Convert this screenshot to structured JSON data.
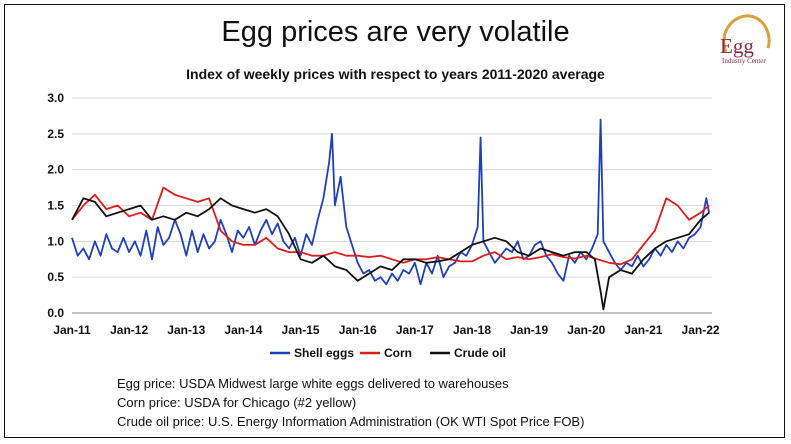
{
  "chart_data": {
    "type": "line",
    "title": "Egg prices are very volatile",
    "subtitle": "Index of weekly prices with respect to years 2011-2020 average",
    "ylim": [
      0,
      3.0
    ],
    "y_ticks": [
      "0.0",
      "0.5",
      "1.0",
      "1.5",
      "2.0",
      "2.5",
      "3.0"
    ],
    "xlim": [
      2011.0,
      2022.2
    ],
    "x_ticks": [
      {
        "value": 2011,
        "label": "Jan-11"
      },
      {
        "value": 2012,
        "label": "Jan-12"
      },
      {
        "value": 2013,
        "label": "Jan-13"
      },
      {
        "value": 2014,
        "label": "Jan-14"
      },
      {
        "value": 2015,
        "label": "Jan-15"
      },
      {
        "value": 2016,
        "label": "Jan-16"
      },
      {
        "value": 2017,
        "label": "Jan-17"
      },
      {
        "value": 2018,
        "label": "Jan-18"
      },
      {
        "value": 2019,
        "label": "Jan-19"
      },
      {
        "value": 2020,
        "label": "Jan-20"
      },
      {
        "value": 2021,
        "label": "Jan-21"
      },
      {
        "value": 2022,
        "label": "Jan-22"
      }
    ],
    "grid": "horizontal",
    "legend": "bottom",
    "series": [
      {
        "name": "Shell eggs",
        "color": "#1f3fbf",
        "x": [
          2011.0,
          2011.1,
          2011.2,
          2011.3,
          2011.4,
          2011.5,
          2011.6,
          2011.7,
          2011.8,
          2011.9,
          2012.0,
          2012.1,
          2012.2,
          2012.3,
          2012.4,
          2012.5,
          2012.6,
          2012.7,
          2012.8,
          2012.9,
          2013.0,
          2013.1,
          2013.2,
          2013.3,
          2013.4,
          2013.5,
          2013.6,
          2013.7,
          2013.8,
          2013.9,
          2014.0,
          2014.1,
          2014.2,
          2014.3,
          2014.4,
          2014.5,
          2014.6,
          2014.7,
          2014.8,
          2014.9,
          2015.0,
          2015.1,
          2015.2,
          2015.3,
          2015.4,
          2015.5,
          2015.55,
          2015.6,
          2015.7,
          2015.8,
          2015.9,
          2016.0,
          2016.1,
          2016.2,
          2016.3,
          2016.4,
          2016.5,
          2016.6,
          2016.7,
          2016.8,
          2016.9,
          2017.0,
          2017.1,
          2017.2,
          2017.3,
          2017.4,
          2017.5,
          2017.6,
          2017.7,
          2017.8,
          2017.9,
          2018.0,
          2018.1,
          2018.15,
          2018.2,
          2018.3,
          2018.4,
          2018.5,
          2018.6,
          2018.7,
          2018.8,
          2018.9,
          2019.0,
          2019.1,
          2019.2,
          2019.3,
          2019.4,
          2019.5,
          2019.6,
          2019.7,
          2019.8,
          2019.9,
          2020.0,
          2020.1,
          2020.2,
          2020.25,
          2020.3,
          2020.4,
          2020.5,
          2020.6,
          2020.7,
          2020.8,
          2020.9,
          2021.0,
          2021.1,
          2021.2,
          2021.3,
          2021.4,
          2021.5,
          2021.6,
          2021.7,
          2021.8,
          2021.9,
          2022.0,
          2022.1,
          2022.15
        ],
        "y": [
          1.05,
          0.8,
          0.9,
          0.75,
          1.0,
          0.8,
          1.1,
          0.9,
          0.85,
          1.05,
          0.85,
          1.0,
          0.8,
          1.15,
          0.75,
          1.2,
          0.95,
          1.05,
          1.3,
          1.1,
          0.8,
          1.15,
          0.85,
          1.1,
          0.9,
          1.0,
          1.3,
          1.1,
          0.85,
          1.15,
          1.05,
          1.2,
          0.95,
          1.15,
          1.3,
          1.1,
          1.25,
          1.0,
          0.9,
          1.05,
          0.8,
          1.1,
          0.95,
          1.3,
          1.6,
          2.1,
          2.5,
          1.5,
          1.9,
          1.2,
          0.95,
          0.7,
          0.55,
          0.6,
          0.45,
          0.5,
          0.4,
          0.55,
          0.45,
          0.6,
          0.55,
          0.7,
          0.4,
          0.7,
          0.55,
          0.8,
          0.5,
          0.65,
          0.7,
          0.85,
          0.8,
          0.95,
          1.2,
          2.45,
          1.0,
          0.85,
          0.7,
          0.8,
          0.9,
          0.85,
          1.0,
          0.75,
          0.8,
          0.95,
          1.0,
          0.8,
          0.7,
          0.55,
          0.45,
          0.8,
          0.7,
          0.85,
          0.75,
          0.9,
          1.1,
          2.7,
          1.0,
          0.85,
          0.7,
          0.6,
          0.7,
          0.65,
          0.8,
          0.65,
          0.75,
          0.9,
          0.8,
          0.95,
          0.85,
          1.0,
          0.9,
          1.05,
          1.1,
          1.2,
          1.6,
          1.4
        ]
      },
      {
        "name": "Corn",
        "color": "#e01b1b",
        "x": [
          2011.0,
          2011.2,
          2011.4,
          2011.6,
          2011.8,
          2012.0,
          2012.2,
          2012.4,
          2012.6,
          2012.8,
          2013.0,
          2013.2,
          2013.4,
          2013.6,
          2013.8,
          2014.0,
          2014.2,
          2014.4,
          2014.6,
          2014.8,
          2015.0,
          2015.2,
          2015.4,
          2015.6,
          2015.8,
          2016.0,
          2016.2,
          2016.4,
          2016.6,
          2016.8,
          2017.0,
          2017.2,
          2017.4,
          2017.6,
          2017.8,
          2018.0,
          2018.2,
          2018.4,
          2018.6,
          2018.8,
          2019.0,
          2019.2,
          2019.4,
          2019.6,
          2019.8,
          2020.0,
          2020.2,
          2020.4,
          2020.6,
          2020.8,
          2021.0,
          2021.2,
          2021.4,
          2021.6,
          2021.8,
          2022.0,
          2022.15
        ],
        "y": [
          1.3,
          1.5,
          1.65,
          1.45,
          1.5,
          1.35,
          1.4,
          1.3,
          1.75,
          1.65,
          1.6,
          1.55,
          1.6,
          1.15,
          1.0,
          0.95,
          0.95,
          1.05,
          0.9,
          0.85,
          0.85,
          0.8,
          0.8,
          0.85,
          0.8,
          0.8,
          0.78,
          0.8,
          0.75,
          0.7,
          0.75,
          0.75,
          0.78,
          0.75,
          0.72,
          0.72,
          0.8,
          0.85,
          0.75,
          0.78,
          0.75,
          0.78,
          0.82,
          0.78,
          0.76,
          0.8,
          0.75,
          0.7,
          0.68,
          0.75,
          0.95,
          1.15,
          1.6,
          1.5,
          1.3,
          1.4,
          1.5
        ]
      },
      {
        "name": "Crude oil",
        "color": "#111111",
        "x": [
          2011.0,
          2011.2,
          2011.4,
          2011.6,
          2011.8,
          2012.0,
          2012.2,
          2012.4,
          2012.6,
          2012.8,
          2013.0,
          2013.2,
          2013.4,
          2013.6,
          2013.8,
          2014.0,
          2014.2,
          2014.4,
          2014.6,
          2014.8,
          2015.0,
          2015.2,
          2015.4,
          2015.6,
          2015.8,
          2016.0,
          2016.2,
          2016.4,
          2016.6,
          2016.8,
          2017.0,
          2017.2,
          2017.4,
          2017.6,
          2017.8,
          2018.0,
          2018.2,
          2018.4,
          2018.6,
          2018.8,
          2019.0,
          2019.2,
          2019.4,
          2019.6,
          2019.8,
          2020.0,
          2020.15,
          2020.25,
          2020.3,
          2020.4,
          2020.6,
          2020.8,
          2021.0,
          2021.2,
          2021.4,
          2021.6,
          2021.8,
          2022.0,
          2022.15
        ],
        "y": [
          1.3,
          1.6,
          1.55,
          1.35,
          1.4,
          1.45,
          1.5,
          1.3,
          1.35,
          1.3,
          1.4,
          1.35,
          1.45,
          1.6,
          1.5,
          1.45,
          1.4,
          1.45,
          1.35,
          1.1,
          0.75,
          0.7,
          0.8,
          0.65,
          0.6,
          0.45,
          0.55,
          0.65,
          0.6,
          0.75,
          0.75,
          0.7,
          0.72,
          0.75,
          0.85,
          0.95,
          1.0,
          1.05,
          1.0,
          0.85,
          0.8,
          0.9,
          0.85,
          0.8,
          0.85,
          0.85,
          0.75,
          0.3,
          0.05,
          0.5,
          0.6,
          0.55,
          0.75,
          0.9,
          1.0,
          1.05,
          1.1,
          1.3,
          1.4
        ]
      }
    ],
    "notes": [
      "Egg price: USDA Midwest large white eggs delivered to warehouses",
      "Corn price: USDA for Chicago (#2 yellow)",
      "Crude oil price: U.S. Energy Information Administration (OK WTI Spot Price FOB)"
    ]
  },
  "logo": {
    "word": "Egg",
    "sub": "Industry Center"
  }
}
